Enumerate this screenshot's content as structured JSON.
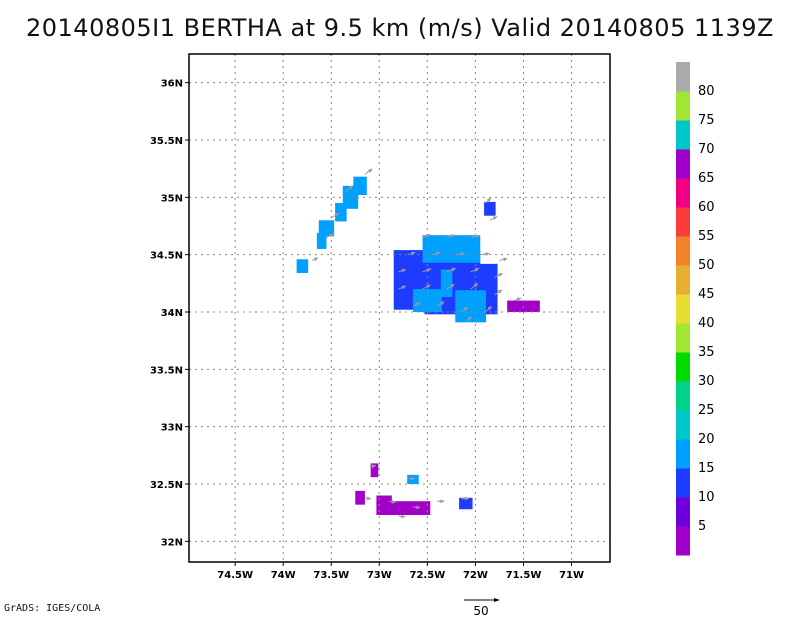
{
  "title": "20140805I1  BERTHA at 9.5 km (m/s) Valid 20140805  1139Z",
  "credit": "GrADS: IGES/COLA",
  "map": {
    "lon_range": [
      -74.98,
      -70.6
    ],
    "lat_range": [
      31.82,
      36.25
    ],
    "lat_ticks": [
      {
        "v": 36,
        "label": "36N"
      },
      {
        "v": 35.5,
        "label": "35.5N"
      },
      {
        "v": 35,
        "label": "35N"
      },
      {
        "v": 34.5,
        "label": "34.5N"
      },
      {
        "v": 34,
        "label": "34N"
      },
      {
        "v": 33.5,
        "label": "33.5N"
      },
      {
        "v": 33,
        "label": "33N"
      },
      {
        "v": 32.5,
        "label": "32.5N"
      },
      {
        "v": 32,
        "label": "32N"
      }
    ],
    "lon_ticks": [
      {
        "v": -74.5,
        "label": "74.5W"
      },
      {
        "v": -74,
        "label": "74W"
      },
      {
        "v": -73.5,
        "label": "73.5W"
      },
      {
        "v": -73,
        "label": "73W"
      },
      {
        "v": -72.5,
        "label": "72.5W"
      },
      {
        "v": -72,
        "label": "72W"
      },
      {
        "v": -71.5,
        "label": "71.5W"
      },
      {
        "v": -71,
        "label": "71W"
      }
    ],
    "grid": true
  },
  "colorbar": {
    "labels": [
      "5",
      "10",
      "15",
      "20",
      "25",
      "30",
      "35",
      "40",
      "45",
      "50",
      "55",
      "60",
      "65",
      "70",
      "75",
      "80"
    ],
    "colors": [
      "#a000c8",
      "#6e00dc",
      "#1e3cff",
      "#00a0ff",
      "#00c8c8",
      "#00d28c",
      "#00dc00",
      "#a0e632",
      "#e6dc32",
      "#e6af2d",
      "#f08228",
      "#fa3c3c",
      "#f00082",
      "#a000c8",
      "#00c8c8",
      "#a0e632",
      "#aaaaaa"
    ]
  },
  "vector_reference": {
    "label": "50"
  },
  "wind_patches": [
    {
      "lon": -73.2,
      "lat": 35.1,
      "rx": 0.07,
      "ry": 0.08,
      "color": "#00a0ff"
    },
    {
      "lon": -73.3,
      "lat": 35.0,
      "rx": 0.08,
      "ry": 0.1,
      "color": "#00a0ff"
    },
    {
      "lon": -73.4,
      "lat": 34.87,
      "rx": 0.06,
      "ry": 0.08,
      "color": "#00a0ff"
    },
    {
      "lon": -73.55,
      "lat": 34.73,
      "rx": 0.08,
      "ry": 0.07,
      "color": "#00a0ff"
    },
    {
      "lon": -73.6,
      "lat": 34.62,
      "rx": 0.05,
      "ry": 0.07,
      "color": "#00a0ff"
    },
    {
      "lon": -73.8,
      "lat": 34.4,
      "rx": 0.06,
      "ry": 0.06,
      "color": "#00a0ff"
    },
    {
      "lon": -72.4,
      "lat": 34.28,
      "rx": 0.45,
      "ry": 0.26,
      "color": "#1e3cff"
    },
    {
      "lon": -72.15,
      "lat": 34.2,
      "rx": 0.38,
      "ry": 0.22,
      "color": "#1e3cff"
    },
    {
      "lon": -72.25,
      "lat": 34.55,
      "rx": 0.3,
      "ry": 0.12,
      "color": "#00a0ff"
    },
    {
      "lon": -72.5,
      "lat": 34.1,
      "rx": 0.15,
      "ry": 0.1,
      "color": "#00a0ff"
    },
    {
      "lon": -72.05,
      "lat": 34.05,
      "rx": 0.16,
      "ry": 0.14,
      "color": "#00a0ff"
    },
    {
      "lon": -72.3,
      "lat": 34.25,
      "rx": 0.06,
      "ry": 0.12,
      "color": "#00a0ff"
    },
    {
      "lon": -71.85,
      "lat": 34.9,
      "rx": 0.06,
      "ry": 0.06,
      "color": "#1e3cff"
    },
    {
      "lon": -71.5,
      "lat": 34.05,
      "rx": 0.17,
      "ry": 0.05,
      "color": "#a000c8"
    },
    {
      "lon": -73.05,
      "lat": 32.62,
      "rx": 0.04,
      "ry": 0.06,
      "color": "#a000c8"
    },
    {
      "lon": -72.65,
      "lat": 32.54,
      "rx": 0.06,
      "ry": 0.04,
      "color": "#00a0ff"
    },
    {
      "lon": -73.2,
      "lat": 32.38,
      "rx": 0.05,
      "ry": 0.06,
      "color": "#a000c8"
    },
    {
      "lon": -72.75,
      "lat": 32.29,
      "rx": 0.28,
      "ry": 0.06,
      "color": "#a000c8"
    },
    {
      "lon": -72.95,
      "lat": 32.34,
      "rx": 0.08,
      "ry": 0.06,
      "color": "#a000c8"
    },
    {
      "lon": -72.1,
      "lat": 32.33,
      "rx": 0.07,
      "ry": 0.05,
      "color": "#1e3cff"
    }
  ],
  "wind_vectors": [
    {
      "lon": -73.15,
      "lat": 35.2,
      "u": 12,
      "v": 9
    },
    {
      "lon": -73.35,
      "lat": 35.05,
      "u": 12,
      "v": 10
    },
    {
      "lon": -73.5,
      "lat": 34.82,
      "u": 13,
      "v": 8
    },
    {
      "lon": -73.55,
      "lat": 34.65,
      "u": 12,
      "v": 6
    },
    {
      "lon": -73.7,
      "lat": 34.45,
      "u": 10,
      "v": 4
    },
    {
      "lon": -71.9,
      "lat": 34.95,
      "u": 10,
      "v": 8
    },
    {
      "lon": -71.85,
      "lat": 34.8,
      "u": 12,
      "v": 6
    },
    {
      "lon": -72.55,
      "lat": 34.65,
      "u": 13,
      "v": 5
    },
    {
      "lon": -72.3,
      "lat": 34.65,
      "u": 14,
      "v": 4
    },
    {
      "lon": -72.05,
      "lat": 34.65,
      "u": 14,
      "v": 3
    },
    {
      "lon": -72.7,
      "lat": 34.5,
      "u": 12,
      "v": 4
    },
    {
      "lon": -72.45,
      "lat": 34.5,
      "u": 13,
      "v": 4
    },
    {
      "lon": -72.2,
      "lat": 34.5,
      "u": 14,
      "v": 2
    },
    {
      "lon": -71.95,
      "lat": 34.5,
      "u": 15,
      "v": 2
    },
    {
      "lon": -71.75,
      "lat": 34.45,
      "u": 13,
      "v": 3
    },
    {
      "lon": -72.8,
      "lat": 34.35,
      "u": 12,
      "v": 4
    },
    {
      "lon": -72.55,
      "lat": 34.35,
      "u": 14,
      "v": 5
    },
    {
      "lon": -72.3,
      "lat": 34.35,
      "u": 15,
      "v": 6
    },
    {
      "lon": -72.05,
      "lat": 34.35,
      "u": 14,
      "v": 6
    },
    {
      "lon": -71.8,
      "lat": 34.3,
      "u": 13,
      "v": 7
    },
    {
      "lon": -72.8,
      "lat": 34.2,
      "u": 12,
      "v": 5
    },
    {
      "lon": -72.55,
      "lat": 34.2,
      "u": 13,
      "v": 7
    },
    {
      "lon": -72.3,
      "lat": 34.2,
      "u": 13,
      "v": 8
    },
    {
      "lon": -72.05,
      "lat": 34.2,
      "u": 12,
      "v": 9
    },
    {
      "lon": -71.8,
      "lat": 34.15,
      "u": 12,
      "v": 8
    },
    {
      "lon": -72.65,
      "lat": 34.05,
      "u": 12,
      "v": 6
    },
    {
      "lon": -72.4,
      "lat": 34.05,
      "u": 12,
      "v": 8
    },
    {
      "lon": -72.15,
      "lat": 34.0,
      "u": 11,
      "v": 8
    },
    {
      "lon": -71.9,
      "lat": 34.0,
      "u": 11,
      "v": 9
    },
    {
      "lon": -71.6,
      "lat": 34.1,
      "u": 12,
      "v": 4
    },
    {
      "lon": -72.1,
      "lat": 33.92,
      "u": 10,
      "v": 7
    },
    {
      "lon": -73.1,
      "lat": 32.65,
      "u": 10,
      "v": 2
    },
    {
      "lon": -72.7,
      "lat": 32.55,
      "u": 11,
      "v": -1
    },
    {
      "lon": -73.15,
      "lat": 32.38,
      "u": 10,
      "v": -2
    },
    {
      "lon": -72.9,
      "lat": 32.35,
      "u": 11,
      "v": -2
    },
    {
      "lon": -72.65,
      "lat": 32.3,
      "u": 12,
      "v": -1
    },
    {
      "lon": -72.4,
      "lat": 32.35,
      "u": 12,
      "v": 0
    },
    {
      "lon": -72.15,
      "lat": 32.37,
      "u": 13,
      "v": 1
    },
    {
      "lon": -72.8,
      "lat": 32.22,
      "u": 11,
      "v": -1
    }
  ]
}
